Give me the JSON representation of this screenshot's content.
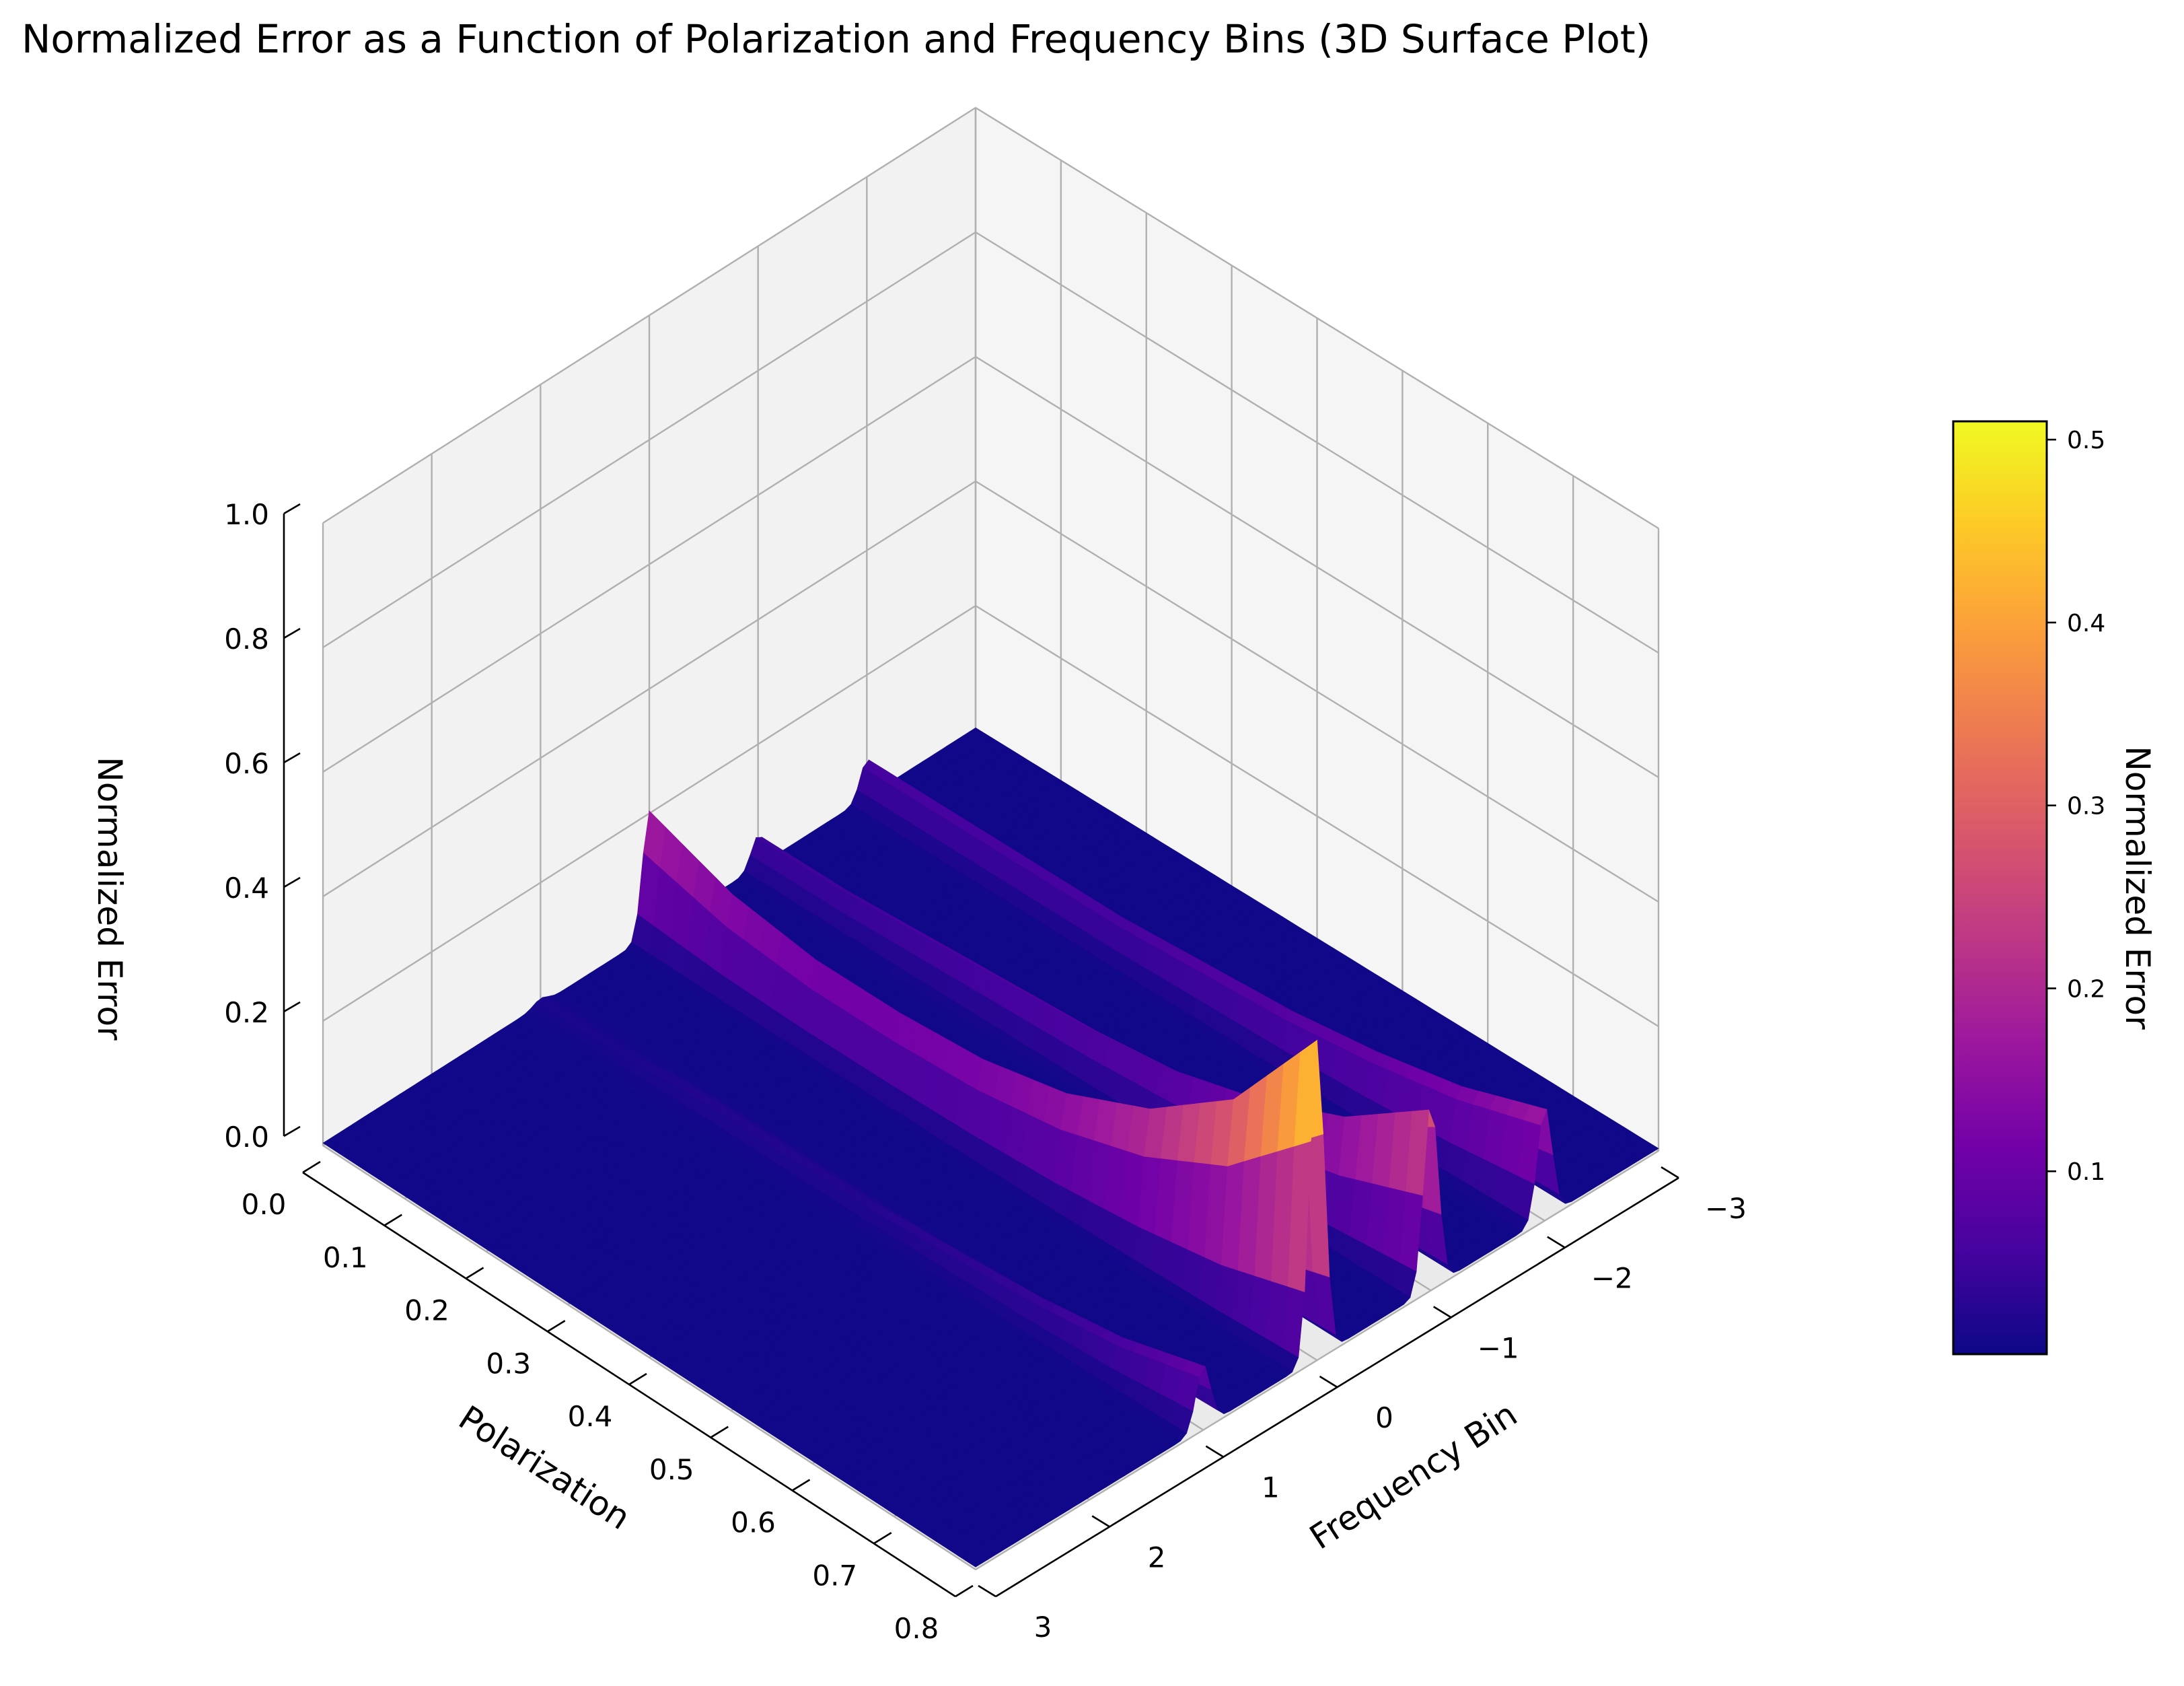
{
  "chart_data": {
    "type": "surface3d",
    "title": "Normalized Error as a Function of Polarization and Frequency Bins (3D Surface Plot)",
    "xlabel": "Polarization",
    "ylabel": "Frequency Bin",
    "zlabel": "Normalized Error",
    "colorbar_label": "Normalized Error",
    "colormap": "plasma",
    "colormap_stops": [
      "#0d0887",
      "#46039f",
      "#7201a8",
      "#9c179e",
      "#bd3786",
      "#d8576b",
      "#ed7953",
      "#fb9f3a",
      "#fdca26",
      "#f0f921"
    ],
    "xlim": [
      0.0,
      0.8
    ],
    "ylim": [
      3,
      -3
    ],
    "zlim": [
      0.0,
      1.0
    ],
    "x_ticks": [
      0.0,
      0.1,
      0.2,
      0.3,
      0.4,
      0.5,
      0.6,
      0.7,
      0.8
    ],
    "x_tick_labels": [
      "0.0",
      "0.1",
      "0.2",
      "0.3",
      "0.4",
      "0.5",
      "0.6",
      "0.7",
      "0.8"
    ],
    "y_ticks": [
      -3,
      -2,
      -1,
      0,
      1,
      2,
      3
    ],
    "y_tick_labels": [
      "−3",
      "−2",
      "−1",
      "0",
      "1",
      "2",
      "3"
    ],
    "z_ticks": [
      0.0,
      0.2,
      0.4,
      0.6,
      0.8,
      1.0
    ],
    "z_tick_labels": [
      "0.0",
      "0.2",
      "0.4",
      "0.6",
      "0.8",
      "1.0"
    ],
    "colorbar_ticks": [
      0.1,
      0.2,
      0.3,
      0.4,
      0.5
    ],
    "colorbar_tick_labels": [
      "0.1",
      "0.2",
      "0.3",
      "0.4",
      "0.5"
    ],
    "colorbar_range": [
      0.0,
      0.51
    ],
    "grid": true,
    "polarization_samples": [
      0.0,
      0.1,
      0.2,
      0.3,
      0.4,
      0.5,
      0.6,
      0.7,
      0.8
    ],
    "ridges": [
      {
        "frequency_bin": -2.0,
        "peak_values": [
          0.06,
          0.06,
          0.06,
          0.06,
          0.07,
          0.08,
          0.1,
          0.13,
          0.18
        ]
      },
      {
        "frequency_bin": -1.0,
        "peak_values": [
          0.05,
          0.05,
          0.06,
          0.07,
          0.08,
          0.1,
          0.14,
          0.2,
          0.3
        ]
      },
      {
        "frequency_bin": 0.0,
        "peak_values": [
          0.2,
          0.15,
          0.13,
          0.13,
          0.14,
          0.17,
          0.23,
          0.33,
          0.51
        ]
      },
      {
        "frequency_bin": 1.0,
        "peak_values": [
          0.01,
          0.01,
          0.02,
          0.02,
          0.02,
          0.03,
          0.04,
          0.06,
          0.1
        ]
      }
    ]
  }
}
